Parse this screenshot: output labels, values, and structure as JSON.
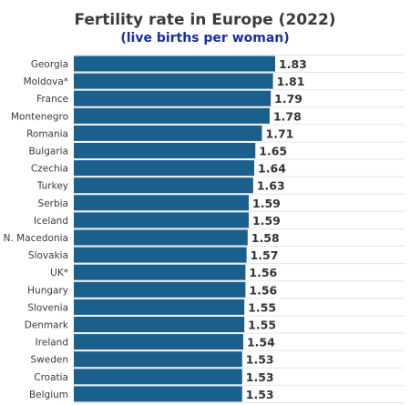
{
  "chart_data": {
    "type": "bar",
    "orientation": "horizontal",
    "title": "Fertility rate in Europe (2022)",
    "subtitle": "(live births per woman)",
    "categories": [
      "Georgia",
      "Moldova*",
      "France",
      "Montenegro",
      "Romania",
      "Bulgaria",
      "Czechia",
      "Turkey",
      "Serbia",
      "Iceland",
      "N. Macedonia",
      "Slovakia",
      "UK*",
      "Hungary",
      "Slovenia",
      "Denmark",
      "Ireland",
      "Sweden",
      "Croatia",
      "Belgium"
    ],
    "values": [
      1.83,
      1.81,
      1.79,
      1.78,
      1.71,
      1.65,
      1.64,
      1.63,
      1.59,
      1.59,
      1.58,
      1.57,
      1.56,
      1.56,
      1.55,
      1.55,
      1.54,
      1.53,
      1.53,
      1.53
    ],
    "value_labels": [
      "1.83",
      "1.81",
      "1.79",
      "1.78",
      "1.71",
      "1.65",
      "1.64",
      "1.63",
      "1.59",
      "1.59",
      "1.58",
      "1.57",
      "1.56",
      "1.56",
      "1.55",
      "1.55",
      "1.54",
      "1.53",
      "1.53",
      "1.53"
    ],
    "xlim": [
      0,
      1.83
    ],
    "xlabel": "",
    "ylabel": "",
    "grid": true,
    "legend": "none",
    "bar_color": "#1b5f8c",
    "title_color": "#3a3a3a",
    "subtitle_color": "#1a2fa0"
  }
}
